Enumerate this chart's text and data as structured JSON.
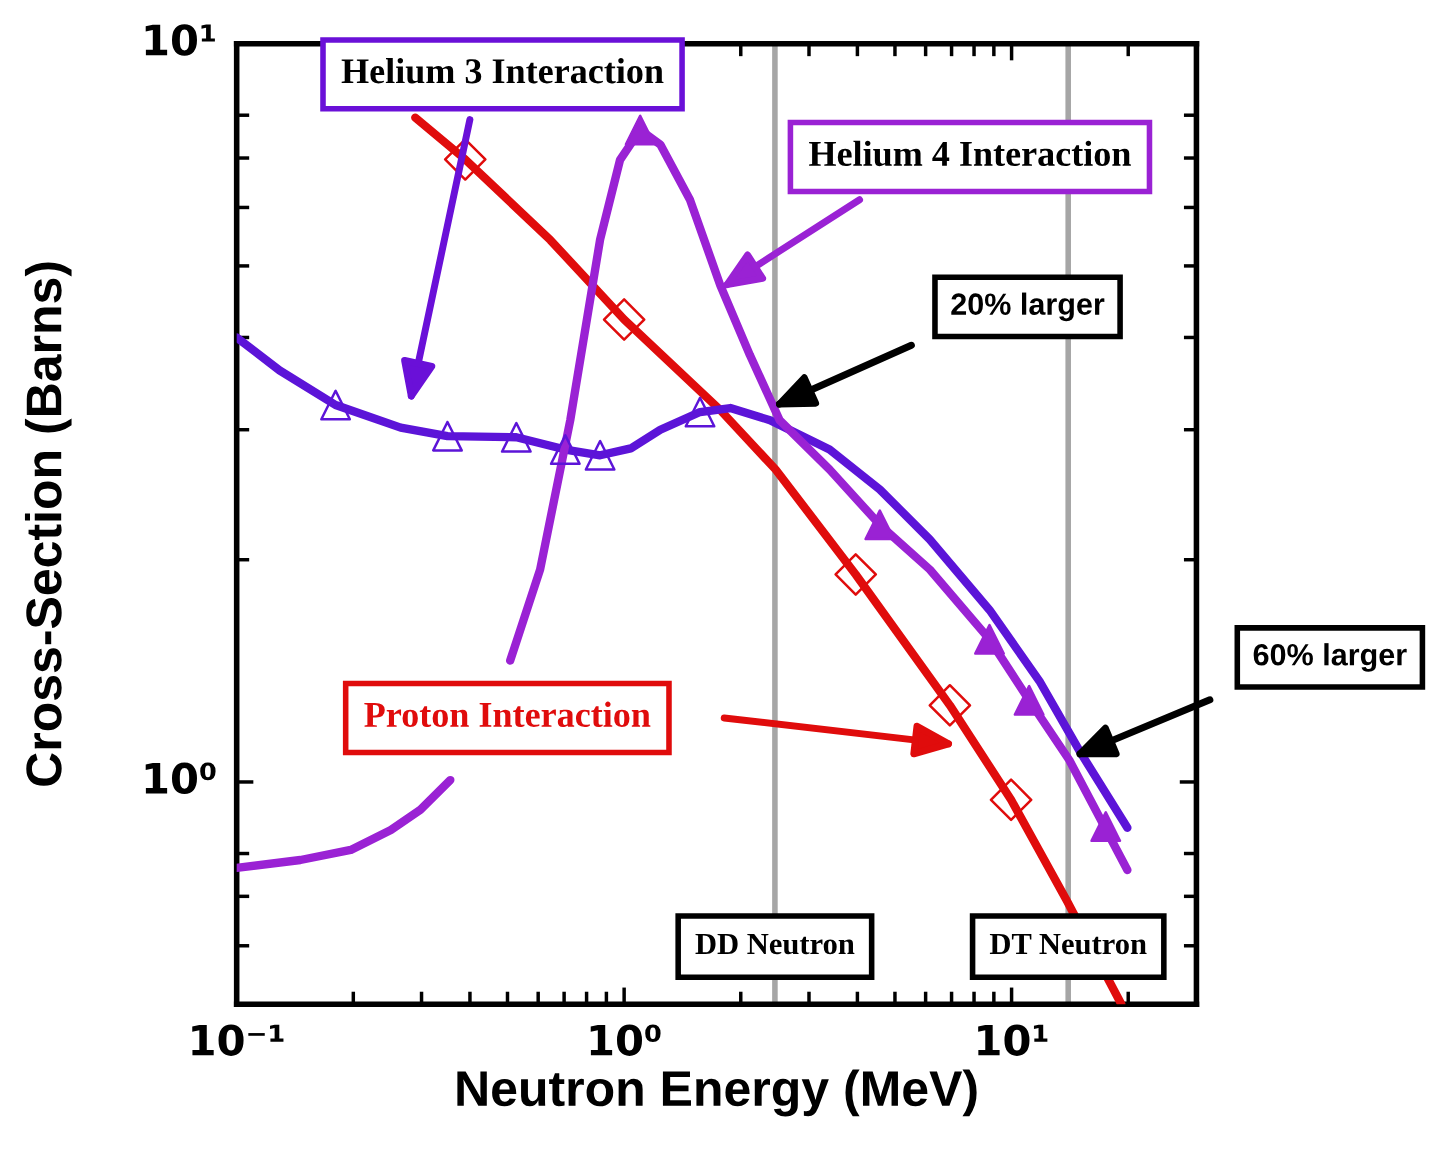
{
  "chart_data": {
    "type": "line",
    "xlabel": "Neutron Energy (MeV)",
    "ylabel": "Cross-Section (Barns)",
    "log": "xy",
    "xlim": [
      0.1,
      30
    ],
    "ylim": [
      0.5,
      10
    ],
    "xticks": [
      {
        "value": 0.1,
        "label": "10⁻¹"
      },
      {
        "value": 1,
        "label": "10⁰"
      },
      {
        "value": 10,
        "label": "10¹"
      }
    ],
    "yticks": [
      {
        "value": 1,
        "label": "10⁰"
      },
      {
        "value": 10,
        "label": "10¹"
      }
    ],
    "grid": false,
    "line_style": "solid",
    "series": [
      {
        "color": "#e00c0c",
        "x": [
          0.289,
          0.389,
          0.645,
          1,
          1.77,
          2.46,
          3.96,
          6.93,
          9.97,
          13.9,
          19.2
        ],
        "values": [
          7.94,
          6.97,
          5.42,
          4.23,
          3.19,
          2.65,
          1.91,
          1.27,
          0.946,
          0.69,
          0.5
        ]
      },
      {
        "type": "scatter",
        "marker": "diamond",
        "color": "#e00c0c",
        "x": [
          0.389,
          1,
          3.96,
          6.93,
          9.97
        ],
        "values": [
          6.97,
          4.23,
          1.91,
          1.27,
          0.946
        ]
      },
      {
        "color": "#5c14d8",
        "x": [
          0.1,
          0.129,
          0.18,
          0.265,
          0.35,
          0.527,
          0.705,
          0.867,
          1.04,
          1.24,
          1.57,
          1.88,
          2.38,
          3.39,
          4.57,
          6.15,
          8.77,
          11.8,
          15.0,
          19.9
        ],
        "values": [
          4.0,
          3.61,
          3.24,
          3.02,
          2.94,
          2.93,
          2.82,
          2.77,
          2.83,
          3.0,
          3.17,
          3.21,
          3.09,
          2.82,
          2.49,
          2.13,
          1.71,
          1.37,
          1.1,
          0.867
        ]
      },
      {
        "type": "scatter",
        "marker": "triangle",
        "color": "#5c14d8",
        "x": [
          0.18,
          0.35,
          0.527,
          0.705,
          0.867,
          1.57
        ],
        "values": [
          3.24,
          2.94,
          2.93,
          2.82,
          2.77,
          3.17
        ]
      },
      {
        "color": "#9a22d4",
        "x": [
          0.1,
          0.146,
          0.197,
          0.25,
          0.298,
          0.356,
          0.425,
          0.508,
          0.607,
          0.726,
          0.867,
          0.976,
          1.1,
          1.24,
          1.48,
          1.77,
          2.11,
          2.52,
          3.39,
          4.57,
          6.15,
          8.77,
          11.1,
          14.1,
          19.9
        ],
        "values": [
          0.765,
          0.784,
          0.809,
          0.861,
          0.917,
          1.006,
          null,
          1.46,
          1.94,
          3.09,
          5.43,
          6.96,
          7.64,
          7.3,
          6.14,
          4.71,
          3.79,
          3.09,
          2.65,
          2.23,
          1.94,
          1.56,
          1.29,
          1.07,
          0.76
        ]
      },
      {
        "type": "scatter",
        "marker": "triangle",
        "color": "#9a22d4",
        "x": [
          1.1,
          4.57,
          8.77,
          11.1,
          17.5
        ],
        "values": [
          7.64,
          2.23,
          1.56,
          1.29,
          0.87
        ]
      }
    ],
    "ref_lines": [
      {
        "axis": "x",
        "value": 2.45,
        "label": "DD Neutron",
        "color": "#a6a6a6"
      },
      {
        "axis": "x",
        "value": 14.0,
        "label": "DT Neutron",
        "color": "#a6a6a6"
      }
    ],
    "annotations": [
      "Helium 3 Interaction",
      "Helium 4 Interaction",
      "20% larger",
      "60% larger",
      "Proton Interaction"
    ]
  }
}
